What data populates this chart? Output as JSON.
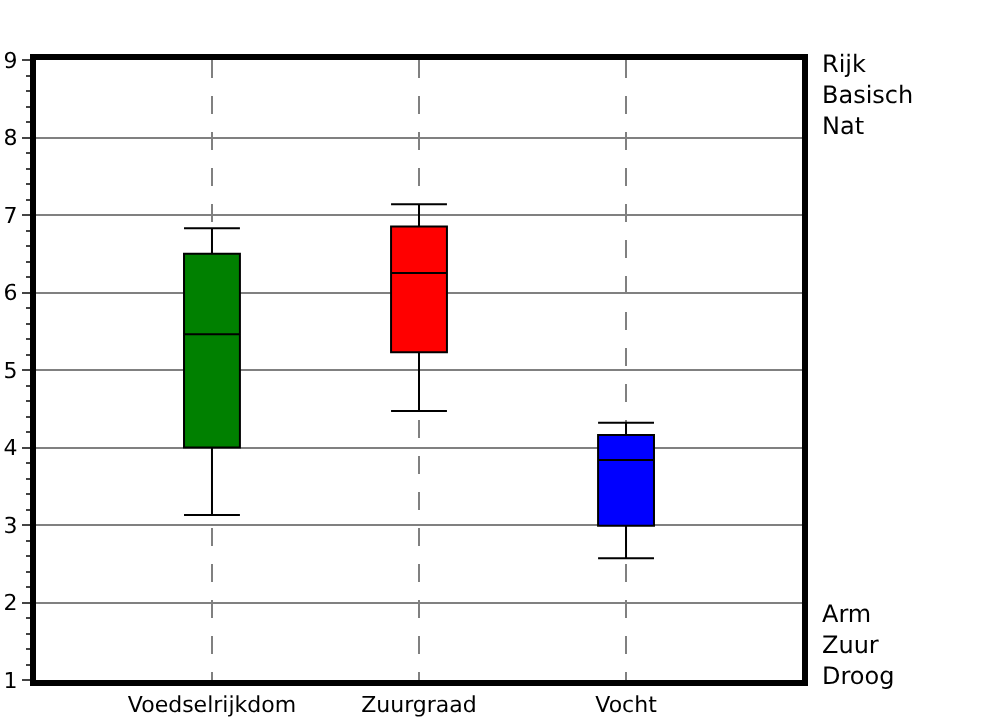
{
  "chart_data": {
    "type": "box",
    "categories": [
      "Voedselrijkdom",
      "Zuurgraad",
      "Vocht"
    ],
    "colors": [
      "#008000",
      "#ff0000",
      "#0000ff"
    ],
    "boxes": [
      {
        "low": 3.13,
        "q1": 4.0,
        "median": 5.46,
        "q3": 6.5,
        "high": 6.83
      },
      {
        "low": 4.47,
        "q1": 5.23,
        "median": 6.25,
        "q3": 6.85,
        "high": 7.14
      },
      {
        "low": 2.57,
        "q1": 2.99,
        "median": 3.84,
        "q3": 4.16,
        "high": 4.32
      }
    ],
    "ylim": [
      1,
      9
    ],
    "yticks": [
      1,
      2,
      3,
      4,
      5,
      6,
      7,
      8,
      9
    ],
    "annotations": [
      "Rijk\nBasisch\nNat",
      "Arm\nZuur\nDroog"
    ],
    "grid": true
  }
}
